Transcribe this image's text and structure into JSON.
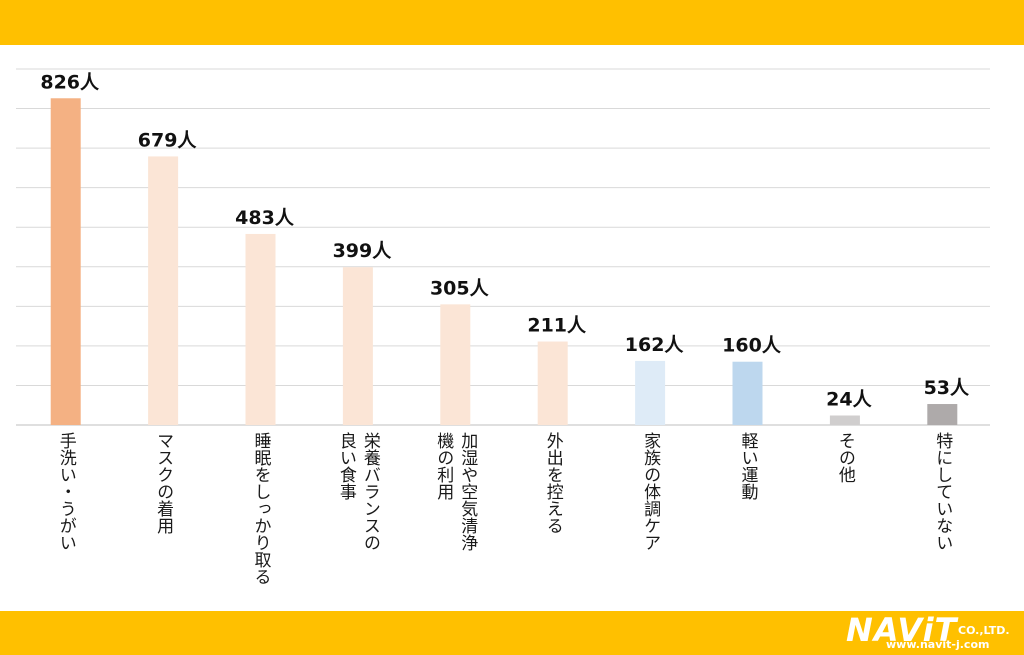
{
  "chart_data": {
    "type": "bar",
    "categories": [
      "手洗い・うがい",
      "マスクの着用",
      "睡眠をしっかり取る",
      "栄養バランスの良い食事",
      "加湿や空気清浄機の利用",
      "外出を控える",
      "家族の体調ケア",
      "軽い運動",
      "その他",
      "特にしていない"
    ],
    "label_lines": [
      [
        "手洗い・うがい"
      ],
      [
        "マスクの着用"
      ],
      [
        "睡眠をしっかり取る"
      ],
      [
        "栄養バランスの",
        "良い食事"
      ],
      [
        "加湿や空気清浄",
        "機の利用"
      ],
      [
        "外出を控える"
      ],
      [
        "家族の体調ケア"
      ],
      [
        "軽い運動"
      ],
      [
        "その他"
      ],
      [
        "特にしていない"
      ]
    ],
    "values": [
      826,
      679,
      483,
      399,
      305,
      211,
      162,
      160,
      24,
      53
    ],
    "value_labels": [
      "826人",
      "679人",
      "483人",
      "399人",
      "305人",
      "211人",
      "162人",
      "160人",
      "24人",
      "53人"
    ],
    "bar_colors": [
      "#f4b183",
      "#fbe5d6",
      "#fbe5d6",
      "#fbe5d6",
      "#fbe5d6",
      "#fbe5d6",
      "#deebf7",
      "#bdd7ee",
      "#d0cece",
      "#aeaaaa"
    ],
    "ylim": [
      0,
      900
    ],
    "ygrid_step": 100,
    "grid": true,
    "title": "",
    "xlabel": "",
    "ylabel": ""
  },
  "logo": {
    "name": "NAViT",
    "suffix": "CO.,LTD.",
    "url": "www.navit-j.com"
  }
}
